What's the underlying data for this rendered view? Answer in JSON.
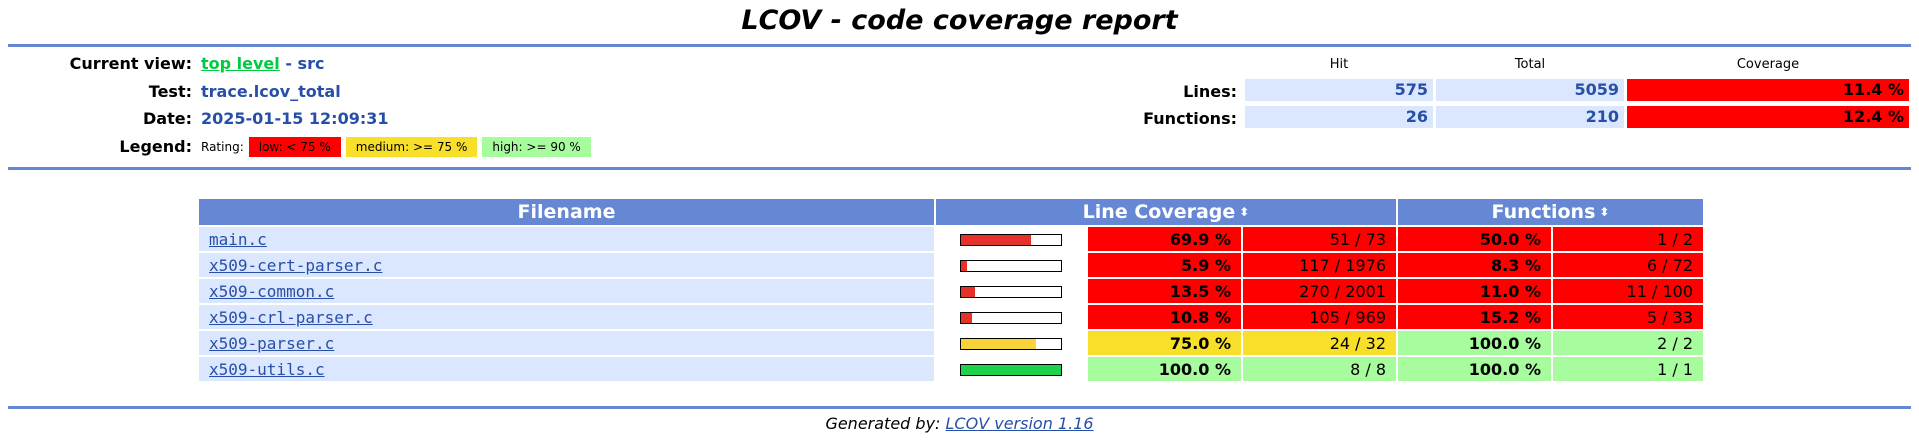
{
  "title": "LCOV - code coverage report",
  "header": {
    "current_view_label": "Current view:",
    "top_level_link": "top level",
    "view_separator": " - ",
    "view_dir": "src",
    "test_label": "Test:",
    "test_value": "trace.lcov_total",
    "date_label": "Date:",
    "date_value": "2025-01-15 12:09:31",
    "legend_label": "Legend:",
    "legend_rating": "Rating:",
    "legend_low": "low: < 75 %",
    "legend_medium": "medium: >= 75 %",
    "legend_high": "high: >= 90 %"
  },
  "summary": {
    "col_hit": "Hit",
    "col_total": "Total",
    "col_coverage": "Coverage",
    "lines_label": "Lines:",
    "lines_hit": "575",
    "lines_total": "5059",
    "lines_coverage": "11.4 %",
    "functions_label": "Functions:",
    "functions_hit": "26",
    "functions_total": "210",
    "functions_coverage": "12.4 %"
  },
  "table": {
    "col_filename": "Filename",
    "col_line_coverage": "Line Coverage",
    "col_functions": "Functions",
    "sort_icon": "⬍",
    "rows": [
      {
        "file": "main.c",
        "line_pct": "69.9 %",
        "line_frac": 0.699,
        "line_hits": "51 / 73",
        "line_rate": "lo",
        "fn_pct": "50.0 %",
        "fn_hits": "1 / 2",
        "fn_rate": "lo"
      },
      {
        "file": "x509-cert-parser.c",
        "line_pct": "5.9 %",
        "line_frac": 0.059,
        "line_hits": "117 / 1976",
        "line_rate": "lo",
        "fn_pct": "8.3 %",
        "fn_hits": "6 / 72",
        "fn_rate": "lo"
      },
      {
        "file": "x509-common.c",
        "line_pct": "13.5 %",
        "line_frac": 0.135,
        "line_hits": "270 / 2001",
        "line_rate": "lo",
        "fn_pct": "11.0 %",
        "fn_hits": "11 / 100",
        "fn_rate": "lo"
      },
      {
        "file": "x509-crl-parser.c",
        "line_pct": "10.8 %",
        "line_frac": 0.108,
        "line_hits": "105 / 969",
        "line_rate": "lo",
        "fn_pct": "15.2 %",
        "fn_hits": "5 / 33",
        "fn_rate": "lo"
      },
      {
        "file": "x509-parser.c",
        "line_pct": "75.0 %",
        "line_frac": 0.75,
        "line_hits": "24 / 32",
        "line_rate": "med",
        "fn_pct": "100.0 %",
        "fn_hits": "2 / 2",
        "fn_rate": "hi"
      },
      {
        "file": "x509-utils.c",
        "line_pct": "100.0 %",
        "line_frac": 1.0,
        "line_hits": "8 / 8",
        "line_rate": "hi",
        "fn_pct": "100.0 %",
        "fn_hits": "1 / 1",
        "fn_rate": "hi"
      }
    ]
  },
  "bar_colors": {
    "lo": "#e6312a",
    "med": "#f8d43a",
    "hi": "#1ed24a"
  },
  "footer": {
    "generated_by": "Generated by: ",
    "lcov_link": "LCOV version 1.16"
  }
}
